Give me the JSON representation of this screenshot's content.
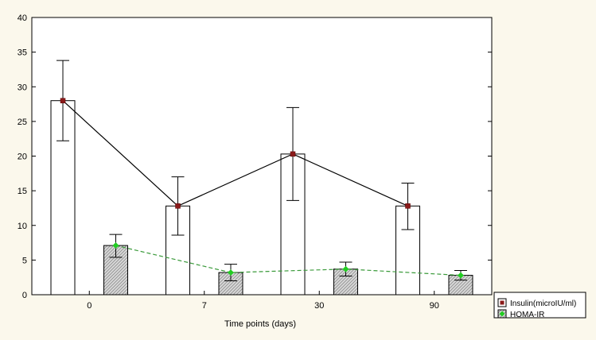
{
  "chart_data": {
    "type": "bar",
    "xlabel": "Time points (days)",
    "ylabel": "",
    "ylim": [
      0,
      40
    ],
    "yticks": [
      0,
      5,
      10,
      15,
      20,
      25,
      30,
      35,
      40
    ],
    "categories": [
      "0",
      "7",
      "30",
      "90"
    ],
    "grid": false,
    "legend_position": "bottom-right",
    "series": [
      {
        "name": "Insulin(microIU/ml)",
        "style": "white bars with error bars, solid line with square markers",
        "marker_color": "#8b1a1a",
        "line_color": "#000000",
        "values": [
          28.0,
          12.8,
          20.3,
          12.8
        ],
        "error_low": [
          22.2,
          8.6,
          13.6,
          9.4
        ],
        "error_high": [
          33.8,
          17.0,
          27.0,
          16.1
        ]
      },
      {
        "name": "HOMA-IR",
        "style": "hatched grey bars with error bars, dashed green line with diamond markers",
        "marker_color": "#22cc22",
        "line_color": "#3a9a3a",
        "values": [
          7.1,
          3.2,
          3.7,
          2.8
        ],
        "error_low": [
          5.4,
          2.0,
          2.7,
          2.1
        ],
        "error_high": [
          8.7,
          4.4,
          4.7,
          3.5
        ]
      }
    ]
  }
}
